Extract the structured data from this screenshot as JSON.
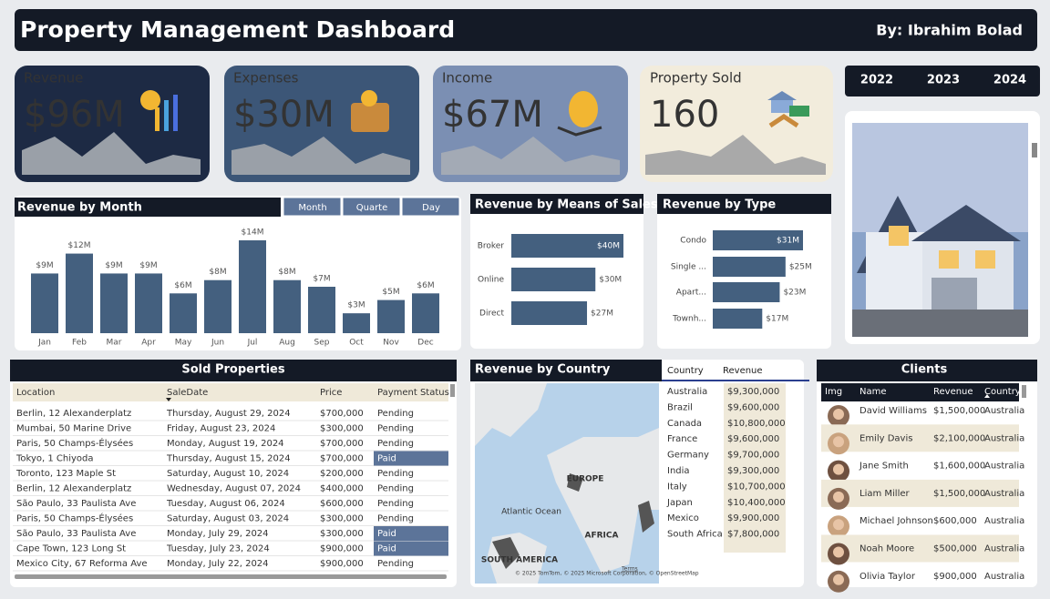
{
  "header": {
    "title": "Property Management Dashboard",
    "author": "By: Ibrahim Bolad"
  },
  "kpis": [
    {
      "label": "Revenue",
      "value": "$96M"
    },
    {
      "label": "Expenses",
      "value": "$30M"
    },
    {
      "label": "Income",
      "value": "$67M"
    },
    {
      "label": "Property Sold",
      "value": "160"
    }
  ],
  "years": [
    "2022",
    "2023",
    "2024"
  ],
  "period_buttons": [
    "Month",
    "Quarte",
    "Day"
  ],
  "chart_data": [
    {
      "type": "bar",
      "orientation": "vertical",
      "title": "Revenue by Month",
      "categories": [
        "Jan",
        "Feb",
        "Mar",
        "Apr",
        "May",
        "Jun",
        "Jul",
        "Aug",
        "Sep",
        "Oct",
        "Nov",
        "Dec"
      ],
      "values": [
        9,
        12,
        9,
        9,
        6,
        8,
        14,
        8,
        7,
        3,
        5,
        6
      ],
      "value_labels": [
        "$9M",
        "$12M",
        "$9M",
        "$9M",
        "$6M",
        "$8M",
        "$14M",
        "$8M",
        "$7M",
        "$3M",
        "$5M",
        "$6M"
      ],
      "color": "#44607f"
    },
    {
      "type": "bar",
      "orientation": "horizontal",
      "title": "Revenue by Means of Sales",
      "categories": [
        "Broker",
        "Online",
        "Direct"
      ],
      "values": [
        40,
        30,
        27
      ],
      "value_labels": [
        "$40M",
        "$30M",
        "$27M"
      ],
      "color": "#44607f"
    },
    {
      "type": "bar",
      "orientation": "horizontal",
      "title": "Revenue by Type",
      "categories": [
        "Condo",
        "Single ...",
        "Apart...",
        "Townh..."
      ],
      "values": [
        31,
        25,
        23,
        17
      ],
      "value_labels": [
        "$31M",
        "$25M",
        "$23M",
        "$17M"
      ],
      "color": "#44607f"
    }
  ],
  "sold_properties": {
    "title": "Sold Properties",
    "columns": [
      "Location",
      "SaleDate",
      "Price",
      "Payment Status"
    ],
    "rows": [
      [
        "Berlin, 12 Alexanderplatz",
        "Thursday, August 29, 2024",
        "$700,000",
        "Pending"
      ],
      [
        "Mumbai, 50 Marine Drive",
        "Friday, August 23, 2024",
        "$300,000",
        "Pending"
      ],
      [
        "Paris, 50 Champs-Élysées",
        "Monday, August 19, 2024",
        "$700,000",
        "Pending"
      ],
      [
        "Tokyo, 1 Chiyoda",
        "Thursday, August 15, 2024",
        "$700,000",
        "Paid"
      ],
      [
        "Toronto, 123 Maple St",
        "Saturday, August 10, 2024",
        "$200,000",
        "Pending"
      ],
      [
        "Berlin, 12 Alexanderplatz",
        "Wednesday, August 07, 2024",
        "$400,000",
        "Pending"
      ],
      [
        "São Paulo, 33 Paulista Ave",
        "Tuesday, August 06, 2024",
        "$600,000",
        "Pending"
      ],
      [
        "Paris, 50 Champs-Élysées",
        "Saturday, August 03, 2024",
        "$300,000",
        "Pending"
      ],
      [
        "São Paulo, 33 Paulista Ave",
        "Monday, July 29, 2024",
        "$300,000",
        "Paid"
      ],
      [
        "Cape Town, 123 Long St",
        "Tuesday, July 23, 2024",
        "$900,000",
        "Paid"
      ],
      [
        "Mexico City, 67 Reforma Ave",
        "Monday, July 22, 2024",
        "$900,000",
        "Pending"
      ]
    ]
  },
  "country_revenue": {
    "title": "Revenue by Country",
    "columns": [
      "Country",
      "Revenue"
    ],
    "rows": [
      [
        "Australia",
        "$9,300,000"
      ],
      [
        "Brazil",
        "$9,600,000"
      ],
      [
        "Canada",
        "$10,800,000"
      ],
      [
        "France",
        "$9,600,000"
      ],
      [
        "Germany",
        "$9,700,000"
      ],
      [
        "India",
        "$9,300,000"
      ],
      [
        "Italy",
        "$10,700,000"
      ],
      [
        "Japan",
        "$10,400,000"
      ],
      [
        "Mexico",
        "$9,900,000"
      ],
      [
        "South Africa",
        "$7,800,000"
      ]
    ]
  },
  "map": {
    "labels": [
      "EUROPE",
      "Atlantic Ocean",
      "AFRICA",
      "SOUTH AMERICA"
    ],
    "attribution": "© 2025 TomTom, © 2025 Microsoft Corporation, © OpenStreetMap",
    "terms": "Terms"
  },
  "clients": {
    "title": "Clients",
    "columns": [
      "Img",
      "Name",
      "Revenue",
      "Country"
    ],
    "rows": [
      [
        "David Williams",
        "$1,500,000",
        "Australia"
      ],
      [
        "Emily Davis",
        "$2,100,000",
        "Australia"
      ],
      [
        "Jane Smith",
        "$1,600,000",
        "Australia"
      ],
      [
        "Liam Miller",
        "$1,500,000",
        "Australia"
      ],
      [
        "Michael Johnson",
        "$600,000",
        "Australia"
      ],
      [
        "Noah Moore",
        "$500,000",
        "Australia"
      ],
      [
        "Olivia Taylor",
        "$900,000",
        "Australia"
      ]
    ]
  }
}
